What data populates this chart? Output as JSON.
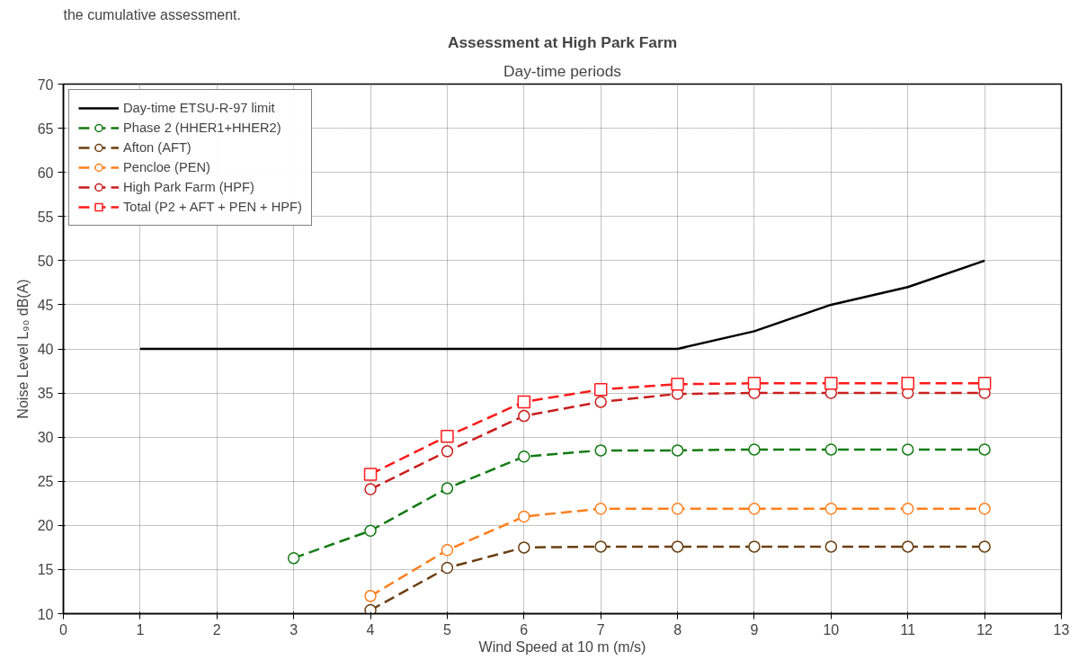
{
  "chart_data": {
    "type": "line",
    "title": "Assessment at High Park Farm",
    "subtitle": "Day-time periods",
    "xlabel": "Wind Speed at 10 m (m/s)",
    "ylabel": "Noise Level L₉₀ dB(A)",
    "annotations": [
      "the cumulative assessment."
    ],
    "xlim": [
      0,
      13
    ],
    "xticks": [
      0,
      1,
      2,
      3,
      4,
      5,
      6,
      7,
      8,
      9,
      10,
      11,
      12,
      13
    ],
    "ylim": [
      10,
      70
    ],
    "yticks": [
      10,
      15,
      20,
      25,
      30,
      35,
      40,
      45,
      50,
      55,
      60,
      65,
      70
    ],
    "grid": true,
    "legend": "top left",
    "series": [
      {
        "name": "Day-time ETSU-R-97 limit",
        "color": "#000000",
        "marker": "none",
        "line_style": "solid",
        "x": [
          1,
          2,
          3,
          4,
          5,
          6,
          7,
          8,
          9,
          10,
          11,
          12
        ],
        "values": [
          40,
          40,
          40,
          40,
          40,
          40,
          40,
          40,
          42,
          45,
          47,
          50
        ]
      },
      {
        "name": "Phase 2 (HHER1+HHER2)",
        "color": "#137a13",
        "marker": "circle",
        "line_style": "dashed",
        "x": [
          3,
          4,
          5,
          6,
          7,
          8,
          9,
          10,
          11,
          12
        ],
        "values": [
          16.3,
          19.4,
          24.2,
          27.8,
          28.5,
          28.5,
          28.6,
          28.6,
          28.6,
          28.6
        ]
      },
      {
        "name": "Afton (AFT)",
        "color": "#6b3f12",
        "marker": "circle",
        "line_style": "dashed",
        "x": [
          4,
          5,
          6,
          7,
          8,
          9,
          10,
          11,
          12
        ],
        "values": [
          10.4,
          15.2,
          17.5,
          17.6,
          17.6,
          17.6,
          17.6,
          17.6,
          17.6
        ]
      },
      {
        "name": "Pencloe (PEN)",
        "color": "#ff7f1e",
        "marker": "circle",
        "line_style": "dashed",
        "x": [
          4,
          5,
          6,
          7,
          8,
          9,
          10,
          11,
          12
        ],
        "values": [
          12.0,
          17.2,
          21.0,
          21.9,
          21.9,
          21.9,
          21.9,
          21.9,
          21.9
        ]
      },
      {
        "name": "High Park Farm (HPF)",
        "color": "#c81e1e",
        "marker": "circle",
        "line_style": "dashed",
        "x": [
          4,
          5,
          6,
          7,
          8,
          9,
          10,
          11,
          12
        ],
        "values": [
          24.1,
          28.4,
          32.4,
          34.0,
          34.9,
          35.0,
          35.0,
          35.0,
          35.0
        ]
      },
      {
        "name": "Total (P2 + AFT + PEN + HPF)",
        "color": "#ff1a1a",
        "marker": "square",
        "line_style": "dashed",
        "x": [
          4,
          5,
          6,
          7,
          8,
          9,
          10,
          11,
          12
        ],
        "values": [
          25.8,
          30.1,
          34.0,
          35.4,
          36.0,
          36.1,
          36.1,
          36.1,
          36.1
        ]
      }
    ]
  }
}
